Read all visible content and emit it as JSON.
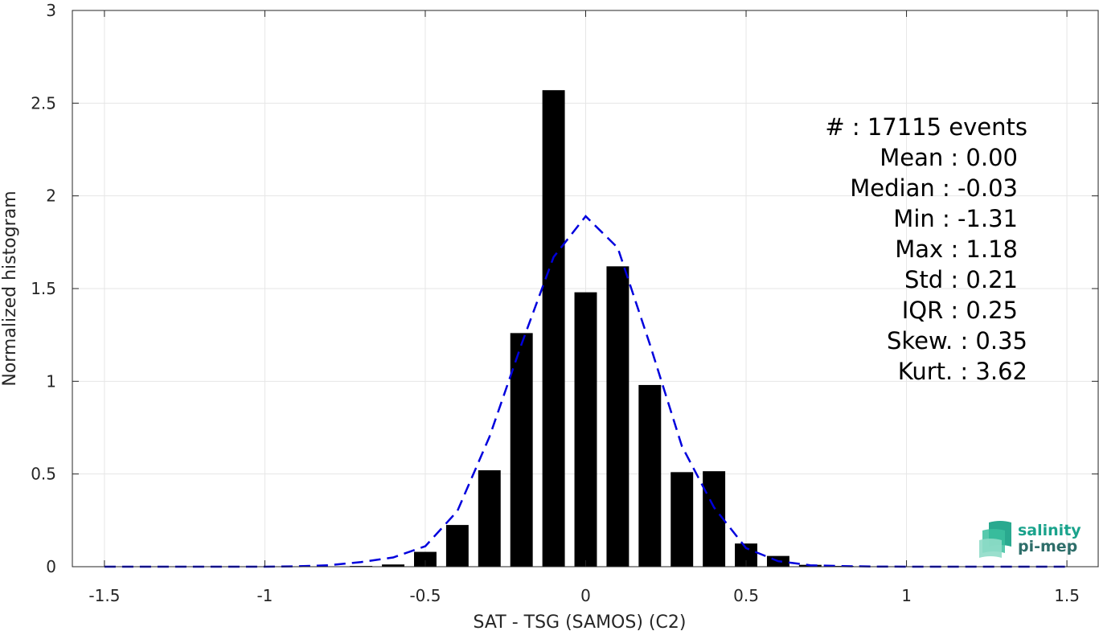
{
  "chart_data": {
    "type": "bar",
    "title": "",
    "xlabel": "SAT - TSG (SAMOS) (C2)",
    "ylabel": "Normalized histogram",
    "xlim": [
      -1.6,
      1.6
    ],
    "ylim": [
      0,
      3
    ],
    "xticks": [
      -1.5,
      -1,
      -0.5,
      0,
      0.5,
      1,
      1.5
    ],
    "xtick_labels": [
      "-1.5",
      "-1",
      "-0.5",
      "0",
      "0.5",
      "1",
      "1.5"
    ],
    "yticks": [
      0,
      0.5,
      1,
      1.5,
      2,
      2.5,
      3
    ],
    "ytick_labels": [
      "0",
      "0.5",
      "1",
      "1.5",
      "2",
      "2.5",
      "3"
    ],
    "grid": true,
    "colors": {
      "bars": "#000000",
      "fit": "#0000dd",
      "grid": "#e6e6e6",
      "axis": "#262626"
    },
    "bar_width": 0.07,
    "bins": [
      {
        "x": -0.8,
        "y": 0.002
      },
      {
        "x": -0.7,
        "y": 0.004
      },
      {
        "x": -0.6,
        "y": 0.012
      },
      {
        "x": -0.5,
        "y": 0.08
      },
      {
        "x": -0.4,
        "y": 0.225
      },
      {
        "x": -0.3,
        "y": 0.52
      },
      {
        "x": -0.2,
        "y": 1.26
      },
      {
        "x": -0.1,
        "y": 2.57
      },
      {
        "x": 0.0,
        "y": 1.48
      },
      {
        "x": 0.1,
        "y": 1.62
      },
      {
        "x": 0.2,
        "y": 0.98
      },
      {
        "x": 0.3,
        "y": 0.51
      },
      {
        "x": 0.4,
        "y": 0.515
      },
      {
        "x": 0.5,
        "y": 0.125
      },
      {
        "x": 0.6,
        "y": 0.058
      },
      {
        "x": 0.7,
        "y": 0.01
      },
      {
        "x": 0.8,
        "y": 0.004
      }
    ],
    "fit_line": {
      "style": "dashed",
      "x": [
        -1.5,
        -1.2,
        -1.0,
        -0.9,
        -0.8,
        -0.7,
        -0.6,
        -0.5,
        -0.4,
        -0.3,
        -0.2,
        -0.1,
        0.0,
        0.1,
        0.2,
        0.3,
        0.4,
        0.5,
        0.6,
        0.7,
        0.8,
        0.9,
        1.0,
        1.2,
        1.5
      ],
      "y": [
        0.0,
        0.0,
        0.0,
        0.002,
        0.008,
        0.025,
        0.05,
        0.11,
        0.3,
        0.7,
        1.2,
        1.67,
        1.89,
        1.72,
        1.2,
        0.65,
        0.32,
        0.1,
        0.03,
        0.008,
        0.003,
        0.001,
        0.0,
        0.0,
        0.0
      ]
    },
    "annotation": [
      "#  : 17115 events",
      "Mean : 0.00",
      "Median : -0.03",
      "Min : -1.31",
      "Max : 1.18",
      "Std : 0.21",
      "IQR : 0.25",
      "Skew. : 0.35",
      "Kurt. : 3.62"
    ]
  },
  "logo": {
    "line1": "salinity",
    "line2": "pi-mep"
  }
}
